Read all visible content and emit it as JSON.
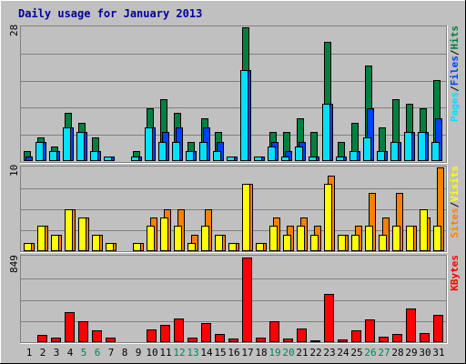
{
  "title": "Daily usage for January 2013",
  "colors": {
    "background": "#C0C0C0",
    "title": "#0000A0",
    "hits": "#008040",
    "files": "#0040FF",
    "pages": "#00E0FF",
    "visits": "#FFFF00",
    "sites": "#FF8000",
    "kbytes": "#FF0000",
    "gridline": "#808080",
    "weekend_day": "#00805C"
  },
  "chart_data": [
    {
      "type": "bar",
      "panel": "top",
      "max_label": "28",
      "ylim": [
        0,
        28
      ],
      "legend_labels": [
        "Pages",
        "/",
        "Files",
        "/",
        "Hits"
      ],
      "categories": [
        "1",
        "2",
        "3",
        "4",
        "5",
        "6",
        "7",
        "8",
        "9",
        "10",
        "11",
        "12",
        "13",
        "14",
        "15",
        "16",
        "17",
        "18",
        "19",
        "20",
        "21",
        "22",
        "23",
        "24",
        "25",
        "26",
        "27",
        "28",
        "29",
        "30",
        "31"
      ],
      "series": [
        {
          "name": "Hits",
          "values": [
            2,
            5,
            3,
            10,
            8,
            5,
            1,
            0,
            2,
            11,
            13,
            10,
            4,
            9,
            6,
            1,
            28,
            1,
            6,
            6,
            9,
            6,
            25,
            4,
            8,
            20,
            7,
            13,
            12,
            11,
            17
          ]
        },
        {
          "name": "Files",
          "values": [
            1,
            4,
            2,
            7,
            6,
            2,
            1,
            0,
            1,
            7,
            6,
            7,
            2,
            7,
            4,
            1,
            19,
            1,
            4,
            2,
            4,
            1,
            12,
            1,
            2,
            11,
            2,
            4,
            6,
            6,
            9
          ]
        },
        {
          "name": "Pages",
          "values": [
            0,
            4,
            2,
            7,
            6,
            2,
            1,
            0,
            1,
            7,
            4,
            4,
            2,
            4,
            2,
            1,
            19,
            1,
            3,
            1,
            3,
            1,
            12,
            1,
            2,
            5,
            2,
            4,
            6,
            6,
            4
          ]
        }
      ]
    },
    {
      "type": "bar",
      "panel": "middle",
      "max_label": "10",
      "ylim": [
        0,
        10
      ],
      "legend_labels": [
        "Sites",
        "/",
        "Visits"
      ],
      "categories": [
        "1",
        "2",
        "3",
        "4",
        "5",
        "6",
        "7",
        "8",
        "9",
        "10",
        "11",
        "12",
        "13",
        "14",
        "15",
        "16",
        "17",
        "18",
        "19",
        "20",
        "21",
        "22",
        "23",
        "24",
        "25",
        "26",
        "27",
        "28",
        "29",
        "30",
        "31"
      ],
      "series": [
        {
          "name": "Visits",
          "values": [
            1,
            3,
            2,
            5,
            4,
            2,
            1,
            0,
            1,
            3,
            4,
            3,
            1,
            3,
            2,
            1,
            8,
            1,
            3,
            2,
            3,
            2,
            8,
            2,
            2,
            3,
            2,
            3,
            3,
            5,
            3
          ]
        },
        {
          "name": "Sites",
          "values": [
            1,
            3,
            2,
            5,
            4,
            2,
            1,
            0,
            1,
            4,
            5,
            5,
            2,
            5,
            2,
            1,
            8,
            1,
            4,
            3,
            4,
            3,
            9,
            2,
            3,
            7,
            4,
            7,
            3,
            4,
            10
          ]
        }
      ]
    },
    {
      "type": "bar",
      "panel": "bottom",
      "max_label": "849",
      "ylim": [
        0,
        849
      ],
      "legend_labels": [
        "KBytes"
      ],
      "categories": [
        "1",
        "2",
        "3",
        "4",
        "5",
        "6",
        "7",
        "8",
        "9",
        "10",
        "11",
        "12",
        "13",
        "14",
        "15",
        "16",
        "17",
        "18",
        "19",
        "20",
        "21",
        "22",
        "23",
        "24",
        "25",
        "26",
        "27",
        "28",
        "29",
        "30",
        "31"
      ],
      "series": [
        {
          "name": "KBytes",
          "values": [
            10,
            70,
            45,
            300,
            210,
            120,
            45,
            0,
            10,
            130,
            170,
            240,
            50,
            190,
            80,
            40,
            849,
            45,
            210,
            35,
            140,
            15,
            485,
            30,
            120,
            230,
            55,
            80,
            335,
            90,
            275
          ]
        }
      ]
    }
  ],
  "x_axis": {
    "labels": [
      "1",
      "2",
      "3",
      "4",
      "5",
      "6",
      "7",
      "8",
      "9",
      "10",
      "11",
      "12",
      "13",
      "14",
      "15",
      "16",
      "17",
      "18",
      "19",
      "20",
      "21",
      "22",
      "23",
      "24",
      "25",
      "26",
      "27",
      "28",
      "29",
      "30",
      "31"
    ],
    "weekend_days": [
      "5",
      "6",
      "12",
      "13",
      "19",
      "20",
      "26",
      "27"
    ]
  }
}
